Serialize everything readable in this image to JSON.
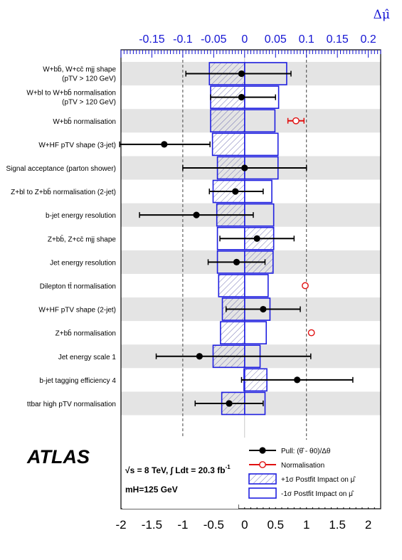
{
  "chart_data": {
    "type": "ranking-pull",
    "experiment": "ATLAS",
    "top_axis": {
      "label": "Δμ̂",
      "ticks": [
        "-0.15",
        "-0.1",
        "-0.05",
        "0",
        "0.05",
        "0.1",
        "0.15",
        "0.2"
      ],
      "tick_values": [
        -0.15,
        -0.1,
        -0.05,
        0,
        0.05,
        0.1,
        0.15,
        0.2
      ],
      "range": [
        -0.2,
        0.22
      ],
      "color": "#1414d4"
    },
    "bottom_axis": {
      "ticks": [
        "-2",
        "-1.5",
        "-1",
        "-0.5",
        "0",
        "0.5",
        "1",
        "1.5",
        "2"
      ],
      "tick_values": [
        -2,
        -1.5,
        -1,
        -0.5,
        0,
        0.5,
        1,
        1.5,
        2
      ],
      "range": [
        -2.0,
        2.2
      ]
    },
    "reference_lines": [
      -1,
      1
    ],
    "rows": [
      {
        "label": "W+bb̄, W+cc̄ mjj shape",
        "label2": "(pTV > 120 GeV)",
        "kind": "pull",
        "pull": -0.05,
        "err_lo": 0.9,
        "err_hi": 0.8,
        "impact_plus": -0.057,
        "impact_minus": 0.068
      },
      {
        "label": "W+bl to W+bb̄ normalisation",
        "label2": "(pTV > 120 GeV)",
        "kind": "pull",
        "pull": -0.05,
        "err_lo": 0.5,
        "err_hi": 0.55,
        "impact_plus": -0.055,
        "impact_minus": 0.055
      },
      {
        "label": "W+bb̄ normalisation",
        "label2": "",
        "kind": "norm",
        "pull": 0.83,
        "err_lo": 0.13,
        "err_hi": 0.13,
        "impact_plus": -0.055,
        "impact_minus": 0.049
      },
      {
        "label": "W+HF pTV shape (3-jet)",
        "label2": "",
        "kind": "pull",
        "pull": -1.3,
        "err_lo": 0.72,
        "err_hi": 0.74,
        "impact_plus": -0.052,
        "impact_minus": 0.054
      },
      {
        "label": "Signal acceptance (parton shower)",
        "label2": "",
        "kind": "pull",
        "pull": 0.0,
        "err_lo": 1.0,
        "err_hi": 1.0,
        "impact_plus": -0.044,
        "impact_minus": 0.054
      },
      {
        "label": "Z+bl to Z+bb̄ normalisation (2-jet)",
        "label2": "",
        "kind": "pull",
        "pull": -0.15,
        "err_lo": 0.42,
        "err_hi": 0.45,
        "impact_plus": -0.051,
        "impact_minus": 0.044
      },
      {
        "label": "b-jet energy resolution",
        "label2": "",
        "kind": "pull",
        "pull": -0.78,
        "err_lo": 0.92,
        "err_hi": 0.92,
        "impact_plus": -0.045,
        "impact_minus": 0.047
      },
      {
        "label": "Z+bb̄, Z+cc̄ mjj shape",
        "label2": "",
        "kind": "pull",
        "pull": 0.2,
        "err_lo": 0.6,
        "err_hi": 0.6,
        "impact_plus": 0.047,
        "impact_minus": -0.044
      },
      {
        "label": "Jet energy resolution",
        "label2": "",
        "kind": "pull",
        "pull": -0.13,
        "err_lo": 0.46,
        "err_hi": 0.46,
        "impact_plus": 0.046,
        "impact_minus": -0.044
      },
      {
        "label": "Dilepton tt̄ normalisation",
        "label2": "",
        "kind": "norm",
        "pull": 0.98,
        "err_lo": 0.0,
        "err_hi": 0.0,
        "impact_plus": -0.042,
        "impact_minus": 0.038
      },
      {
        "label": "W+HF pTV shape (2-jet)",
        "label2": "",
        "kind": "pull",
        "pull": 0.3,
        "err_lo": 0.6,
        "err_hi": 0.6,
        "impact_plus": -0.036,
        "impact_minus": 0.041
      },
      {
        "label": "Z+bb̄ normalisation",
        "label2": "",
        "kind": "norm",
        "pull": 1.08,
        "err_lo": 0.0,
        "err_hi": 0.0,
        "impact_plus": -0.039,
        "impact_minus": 0.035
      },
      {
        "label": "Jet energy scale 1",
        "label2": "",
        "kind": "pull",
        "pull": -0.73,
        "err_lo": 0.7,
        "err_hi": 1.8,
        "impact_plus": -0.051,
        "impact_minus": 0.025
      },
      {
        "label": "b-jet tagging efficiency 4",
        "label2": "",
        "kind": "pull",
        "pull": 0.85,
        "err_lo": 0.9,
        "err_hi": 0.9,
        "impact_plus": 0.036,
        "impact_minus": -0.001
      },
      {
        "label": "ttbar high pTV normalisation",
        "label2": "",
        "kind": "pull",
        "pull": -0.25,
        "err_lo": 0.55,
        "err_hi": 0.55,
        "impact_plus": -0.037,
        "impact_minus": 0.033
      }
    ],
    "legend": {
      "position": "bottom-right",
      "items": [
        {
          "label": "Pull: (θ̂ - θ0)/Δθ",
          "kind": "pull"
        },
        {
          "label": "Normalisation",
          "kind": "norm"
        },
        {
          "label": "+1σ Postfit Impact on μ̂",
          "kind": "plus"
        },
        {
          "label": "-1σ Postfit Impact on μ̂",
          "kind": "minus"
        }
      ]
    },
    "annotations": {
      "energy": "√s = 8 TeV,  ∫ Ldt = 20.3 fb",
      "energy_sup": "-1",
      "mass": "mH=125 GeV"
    },
    "colors": {
      "pull": "#000000",
      "norm": "#e01010",
      "impact_border": "#2020e0",
      "hatch": "#6a6ab0",
      "band": "#e4e4e4"
    },
    "grid": false
  }
}
